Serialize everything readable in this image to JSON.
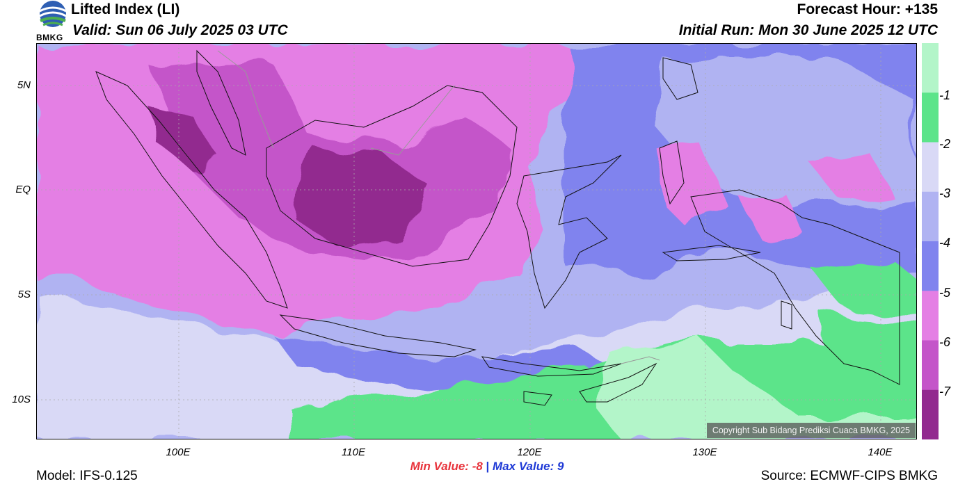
{
  "header": {
    "title": "Lifted Index (LI)",
    "valid": "Valid: Sun 06 July 2025 03 UTC",
    "forecast_hour": "Forecast Hour: +135",
    "initial_run": "Initial Run: Mon 30 June 2025 12 UTC",
    "logo_text": "BMKG"
  },
  "map": {
    "lat_labels": [
      "5N",
      "EQ",
      "5S",
      "10S"
    ],
    "lon_labels": [
      "100E",
      "110E",
      "120E",
      "130E",
      "140E"
    ],
    "copyright": "Copyright Sub Bidang Prediksi Cuaca BMKG, 2025"
  },
  "colorbar": {
    "labels": [
      "-1",
      "-2",
      "-3",
      "-4",
      "-5",
      "-6",
      "-7"
    ],
    "colors": [
      "#b3f5c9",
      "#5ce48a",
      "#d9d9f6",
      "#b0b3f2",
      "#8083ee",
      "#e47fe4",
      "#c455c9",
      "#92298f"
    ]
  },
  "stats": {
    "min_label": "Min Value:",
    "min_value": "-8",
    "sep": "|",
    "max_label": "Max Value:",
    "max_value": "9"
  },
  "footer": {
    "model": "Model: IFS-0.125",
    "source": "Source: ECMWF-CIPS BMKG"
  }
}
